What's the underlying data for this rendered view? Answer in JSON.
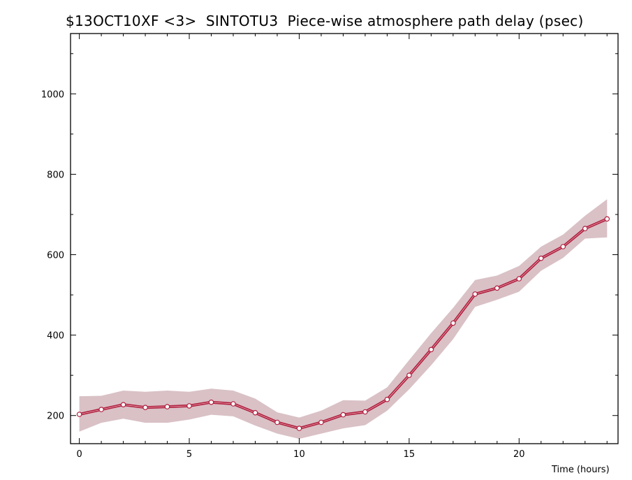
{
  "chart_data": {
    "type": "line",
    "title": "$13OCT10XF <3>  SINTOTU3  Piece-wise atmosphere path delay (psec)",
    "xlabel": "Time (hours)",
    "ylabel": "",
    "xlim": [
      -0.4,
      24.5
    ],
    "ylim": [
      130,
      1150
    ],
    "x_ticks": [
      0,
      5,
      10,
      15,
      20
    ],
    "y_ticks": [
      200,
      400,
      600,
      800,
      1000
    ],
    "grid": false,
    "colors": {
      "line": "#b0203f",
      "band": "#d9c1c6",
      "marker_fill": "#ffffff"
    },
    "series": [
      {
        "x": [
          0,
          1,
          2,
          3,
          4,
          5,
          6,
          7,
          8,
          9,
          10,
          11,
          12,
          13,
          14,
          15,
          16,
          17,
          18,
          19,
          20,
          21,
          22,
          23,
          24
        ],
        "values": [
          203,
          215,
          227,
          220,
          222,
          224,
          233,
          229,
          207,
          183,
          168,
          183,
          202,
          209,
          240,
          300,
          364,
          430,
          502,
          517,
          540,
          591,
          620,
          665,
          689
        ],
        "lower": [
          160,
          182,
          192,
          182,
          182,
          190,
          202,
          198,
          175,
          155,
          142,
          155,
          168,
          176,
          212,
          265,
          325,
          390,
          470,
          488,
          508,
          560,
          592,
          640,
          643
        ],
        "upper": [
          248,
          249,
          262,
          259,
          262,
          259,
          267,
          262,
          242,
          208,
          195,
          212,
          238,
          237,
          270,
          338,
          405,
          468,
          537,
          548,
          572,
          620,
          650,
          697,
          738
        ]
      }
    ]
  }
}
